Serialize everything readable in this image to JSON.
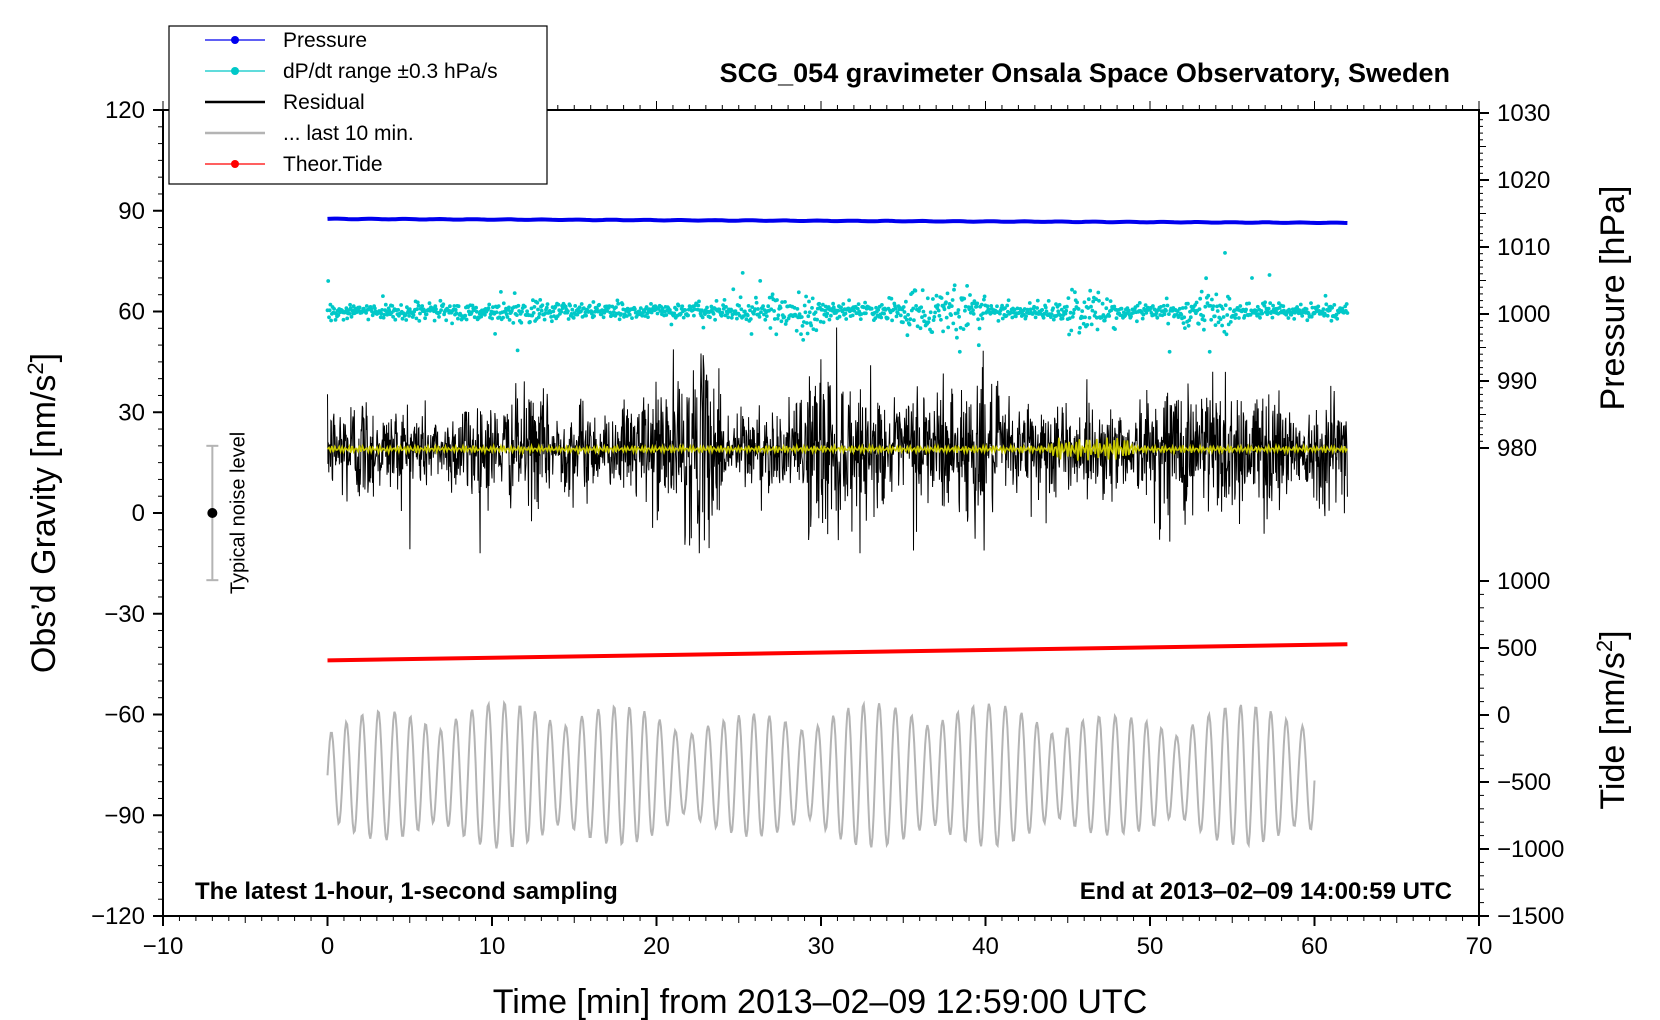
{
  "chart_data": {
    "type": "line",
    "title": "SCG_054 gravimeter Onsala Space Observatory, Sweden",
    "xlabel": "Time [min] from 2013‒02‒09 12:59:00 UTC",
    "ylabel_left_main": "Obs’d Gravity [nm/s",
    "ylabel_left_sup": "2",
    "ylabel_left_end": "]",
    "ylabel_right_top": "Pressure [hPa]",
    "ylabel_right_bottom_main": "Tide [nm/s",
    "ylabel_right_bottom_sup": "2",
    "ylabel_right_bottom_end": "]",
    "xlim": [
      -10,
      70
    ],
    "ylim": [
      -120,
      120
    ],
    "pressure_axis_range": [
      980,
      1030
    ],
    "tide_axis_range": [
      -1500,
      1000
    ],
    "x_ticks": [
      "−10",
      "0",
      "10",
      "20",
      "30",
      "40",
      "50",
      "60",
      "70"
    ],
    "x_tick_values": [
      -10,
      0,
      10,
      20,
      30,
      40,
      50,
      60,
      70
    ],
    "y_ticks": [
      "120",
      "90",
      "60",
      "30",
      "0",
      "−30",
      "−60",
      "−90",
      "−120"
    ],
    "y_tick_values": [
      120,
      90,
      60,
      30,
      0,
      -30,
      -60,
      -90,
      -120
    ],
    "pressure_ticks": [
      "1030",
      "1020",
      "1010",
      "1000",
      "990",
      "980"
    ],
    "pressure_tick_values": [
      1030,
      1020,
      1010,
      1000,
      990,
      980
    ],
    "tide_ticks": [
      "1000",
      "500",
      "0",
      "−500",
      "−1000",
      "−1500"
    ],
    "tide_tick_values": [
      1000,
      500,
      0,
      -500,
      -1000,
      -1500
    ],
    "legend": [
      {
        "label": "Pressure",
        "color": "#0000ee",
        "marker": true
      },
      {
        "label": "dP/dt range ±0.3 hPa/s",
        "color": "#00c8c8",
        "marker": true
      },
      {
        "label": "Residual",
        "color": "#000000",
        "marker": false
      },
      {
        "label": "... last 10 min.",
        "color": "#b4b4b4",
        "marker": false
      },
      {
        "label": "Theor.Tide",
        "color": "#ff0000",
        "marker": true
      }
    ],
    "series": [
      {
        "name": "Pressure",
        "axis": "pressure",
        "x_range": [
          0,
          62
        ],
        "start": 1014.2,
        "end": 1013.6,
        "color": "#0000ee"
      },
      {
        "name": "dP/dt range ±0.3 hPa/s",
        "axis": "gravity",
        "x_range": [
          0,
          62
        ],
        "center": 60,
        "spread": 8,
        "color": "#00c8c8"
      },
      {
        "name": "Residual",
        "axis": "gravity",
        "x_range": [
          0,
          62
        ],
        "center": 19,
        "spread": 20,
        "color": "#000000"
      },
      {
        "name": "Residual (smoothed)",
        "axis": "gravity",
        "x_range": [
          0,
          62
        ],
        "center": 19,
        "spread": 2,
        "color": "#c8c800"
      },
      {
        "name": "... last 10 min.",
        "axis": "tide",
        "x_range": [
          0,
          60
        ],
        "center": -450,
        "spread": 550,
        "color": "#b4b4b4"
      },
      {
        "name": "Theor.Tide",
        "axis": "tide",
        "x_range": [
          0,
          62
        ],
        "start": 408,
        "end": 528,
        "color": "#ff0000"
      }
    ],
    "noise_level": {
      "label": "Typical noise level",
      "x": -7,
      "center": 0,
      "low": -20,
      "high": 20
    },
    "annotations": {
      "left": "The latest 1‑hour, 1‑second sampling",
      "right": "End at 2013‒02‒09 14:00:59 UTC"
    },
    "colors": {
      "pressure": "#0000ee",
      "dpdt": "#00c8c8",
      "residual": "#000000",
      "smoothed": "#c8c800",
      "last10": "#b4b4b4",
      "tide": "#ff0000",
      "noise_bar": "#b4b4b4"
    }
  }
}
